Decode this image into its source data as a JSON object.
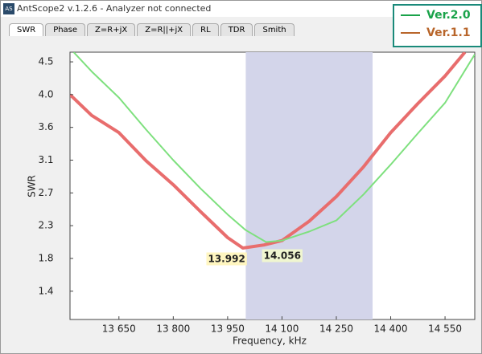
{
  "window": {
    "icon": "AS",
    "title": "AntScope2 v.1.2.6 - Analyzer not connected",
    "tabs": [
      "SWR",
      "Phase",
      "Z=R+jX",
      "Z=R||+jX",
      "RL",
      "TDR",
      "Smith"
    ]
  },
  "chart_data": {
    "type": "line",
    "xlabel": "Frequency, kHz",
    "ylabel": "SWR",
    "xlim": [
      13515,
      14632
    ],
    "ylim": [
      1.0,
      4.59
    ],
    "xticks": [
      {
        "value": 13650,
        "label": "13 650"
      },
      {
        "value": 13800,
        "label": "13 800"
      },
      {
        "value": 13950,
        "label": "13 950"
      },
      {
        "value": 14100,
        "label": "14 100"
      },
      {
        "value": 14250,
        "label": "14 250"
      },
      {
        "value": 14400,
        "label": "14 400"
      },
      {
        "value": 14550,
        "label": "14 550"
      }
    ],
    "yticks": [
      {
        "value": 1.38,
        "label": "1.4"
      },
      {
        "value": 1.82,
        "label": "1.8"
      },
      {
        "value": 2.26,
        "label": "2.3"
      },
      {
        "value": 2.7,
        "label": "2.7"
      },
      {
        "value": 3.14,
        "label": "3.1"
      },
      {
        "value": 3.58,
        "label": "3.6"
      },
      {
        "value": 4.02,
        "label": "4.0"
      },
      {
        "value": 4.46,
        "label": "4.5"
      }
    ],
    "band": [
      14000,
      14350
    ],
    "band_color": "#d3d5ea",
    "series": [
      {
        "name": "Ver.2.0",
        "color": "#7ee07e",
        "legend_color": "#1aa34a",
        "x": [
          13525,
          13575,
          13650,
          13725,
          13800,
          13875,
          13950,
          14000,
          14056,
          14100,
          14175,
          14250,
          14325,
          14400,
          14475,
          14550,
          14632
        ],
        "values": [
          4.59,
          4.33,
          3.98,
          3.55,
          3.14,
          2.76,
          2.41,
          2.2,
          2.04,
          2.06,
          2.18,
          2.33,
          2.68,
          3.08,
          3.5,
          3.91,
          4.56
        ]
      },
      {
        "name": "Ver.1.1",
        "color": "#e86d6d",
        "legend_color": "#b8652a",
        "x": [
          13515,
          13575,
          13650,
          13725,
          13800,
          13875,
          13950,
          13992,
          14050,
          14100,
          14175,
          14250,
          14325,
          14400,
          14475,
          14550,
          14605
        ],
        "values": [
          4.02,
          3.74,
          3.51,
          3.13,
          2.81,
          2.45,
          2.1,
          1.96,
          2.0,
          2.06,
          2.32,
          2.65,
          3.05,
          3.51,
          3.9,
          4.27,
          4.59
        ]
      }
    ],
    "annotations": [
      {
        "value": 13992,
        "label": "13.992",
        "color": "#b8652a"
      },
      {
        "value": 14056,
        "label": "14.056",
        "color": "#1aa34a"
      }
    ]
  }
}
